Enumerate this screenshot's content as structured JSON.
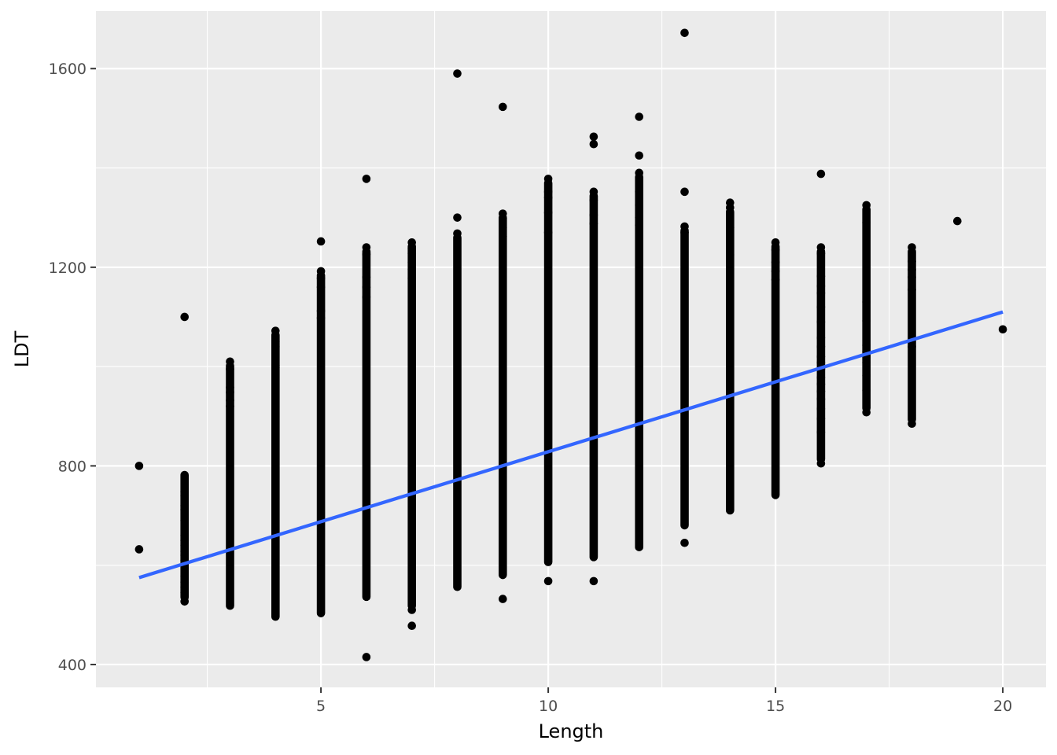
{
  "chart_data": {
    "type": "scatter",
    "title": "",
    "xlabel": "Length",
    "ylabel": "LDT",
    "xlim": [
      0.05,
      20.95
    ],
    "ylim": [
      354,
      1716
    ],
    "x_ticks": [
      5,
      10,
      15,
      20
    ],
    "x_tick_labels": [
      "5",
      "10",
      "15",
      "20"
    ],
    "y_ticks": [
      400,
      800,
      1200,
      1600
    ],
    "y_tick_labels": [
      "400",
      "800",
      "1200",
      "1600"
    ],
    "grid": true,
    "legend": "none",
    "colors": {
      "panel": "#ebebeb",
      "grid": "#ffffff",
      "points": "#000000",
      "trend": "#3366ff"
    },
    "strips": [
      {
        "x": 2,
        "min": 527,
        "max": 790
      },
      {
        "x": 3,
        "min": 510,
        "max": 1010
      },
      {
        "x": 4,
        "min": 488,
        "max": 1072
      },
      {
        "x": 5,
        "min": 495,
        "max": 1192
      },
      {
        "x": 6,
        "min": 528,
        "max": 1240
      },
      {
        "x": 7,
        "min": 510,
        "max": 1250
      },
      {
        "x": 8,
        "min": 548,
        "max": 1268
      },
      {
        "x": 9,
        "min": 572,
        "max": 1308
      },
      {
        "x": 10,
        "min": 598,
        "max": 1378
      },
      {
        "x": 11,
        "min": 608,
        "max": 1352
      },
      {
        "x": 12,
        "min": 628,
        "max": 1390
      },
      {
        "x": 13,
        "min": 672,
        "max": 1282
      },
      {
        "x": 14,
        "min": 702,
        "max": 1320
      },
      {
        "x": 15,
        "min": 733,
        "max": 1250
      },
      {
        "x": 16,
        "min": 805,
        "max": 1240
      },
      {
        "x": 17,
        "min": 908,
        "max": 1325
      },
      {
        "x": 18,
        "min": 885,
        "max": 1240
      }
    ],
    "points": [
      [
        1,
        800
      ],
      [
        1,
        632
      ],
      [
        2,
        1100
      ],
      [
        2,
        748
      ],
      [
        2,
        740
      ],
      [
        2,
        720
      ],
      [
        2,
        712
      ],
      [
        2,
        690
      ],
      [
        2,
        660
      ],
      [
        2,
        650
      ],
      [
        2,
        640
      ],
      [
        2,
        628
      ],
      [
        2,
        620
      ],
      [
        2,
        610
      ],
      [
        2,
        600
      ],
      [
        2,
        578
      ],
      [
        2,
        566
      ],
      [
        2,
        556
      ],
      [
        2,
        545
      ],
      [
        2,
        527
      ],
      [
        3,
        1010
      ],
      [
        3,
        995
      ],
      [
        3,
        958
      ],
      [
        3,
        948
      ],
      [
        3,
        932
      ],
      [
        3,
        920
      ],
      [
        4,
        1072
      ],
      [
        4,
        1050
      ],
      [
        4,
        1040
      ],
      [
        4,
        1003
      ],
      [
        4,
        998
      ],
      [
        5,
        1252
      ],
      [
        5,
        1192
      ],
      [
        5,
        1178
      ],
      [
        5,
        1160
      ],
      [
        5,
        1112
      ],
      [
        5,
        1098
      ],
      [
        6,
        1378
      ],
      [
        6,
        1240
      ],
      [
        6,
        1226
      ],
      [
        6,
        1180
      ],
      [
        6,
        1160
      ],
      [
        6,
        1140
      ],
      [
        6,
        415
      ],
      [
        7,
        1250
      ],
      [
        7,
        1238
      ],
      [
        7,
        1228
      ],
      [
        7,
        1210
      ],
      [
        7,
        1196
      ],
      [
        7,
        1178
      ],
      [
        7,
        510
      ],
      [
        7,
        478
      ],
      [
        8,
        1590
      ],
      [
        8,
        1300
      ],
      [
        8,
        1268
      ],
      [
        9,
        1523
      ],
      [
        9,
        1308
      ],
      [
        9,
        1298
      ],
      [
        9,
        1280
      ],
      [
        9,
        1262
      ],
      [
        9,
        532
      ],
      [
        10,
        1378
      ],
      [
        10,
        1352
      ],
      [
        10,
        1340
      ],
      [
        10,
        1310
      ],
      [
        10,
        1270
      ],
      [
        10,
        568
      ],
      [
        11,
        1463
      ],
      [
        11,
        1448
      ],
      [
        11,
        1352
      ],
      [
        11,
        1335
      ],
      [
        11,
        1305
      ],
      [
        11,
        1288
      ],
      [
        11,
        568
      ],
      [
        12,
        1503
      ],
      [
        12,
        1425
      ],
      [
        12,
        1390
      ],
      [
        12,
        1352
      ],
      [
        12,
        1325
      ],
      [
        12,
        1300
      ],
      [
        12,
        1285
      ],
      [
        13,
        1672
      ],
      [
        13,
        1352
      ],
      [
        13,
        1282
      ],
      [
        13,
        1270
      ],
      [
        13,
        645
      ],
      [
        14,
        1330
      ],
      [
        14,
        1320
      ],
      [
        14,
        1280
      ],
      [
        14,
        1225
      ],
      [
        15,
        1250
      ],
      [
        15,
        1235
      ],
      [
        15,
        1210
      ],
      [
        15,
        1192
      ],
      [
        15,
        1175
      ],
      [
        16,
        1388
      ],
      [
        16,
        1240
      ],
      [
        16,
        1228
      ],
      [
        16,
        1182
      ],
      [
        16,
        1162
      ],
      [
        16,
        1148
      ],
      [
        16,
        1120
      ],
      [
        16,
        1090
      ],
      [
        16,
        1058
      ],
      [
        16,
        1040
      ],
      [
        16,
        1020
      ],
      [
        16,
        1008
      ],
      [
        16,
        995
      ],
      [
        16,
        978
      ],
      [
        16,
        965
      ],
      [
        16,
        950
      ],
      [
        16,
        935
      ],
      [
        16,
        915
      ],
      [
        16,
        895
      ],
      [
        16,
        868
      ],
      [
        16,
        805
      ],
      [
        17,
        1325
      ],
      [
        17,
        1290
      ],
      [
        17,
        1130
      ],
      [
        17,
        1092
      ],
      [
        17,
        1043
      ],
      [
        17,
        1030
      ],
      [
        17,
        1020
      ],
      [
        17,
        1008
      ],
      [
        17,
        982
      ],
      [
        17,
        952
      ],
      [
        17,
        908
      ],
      [
        18,
        1240
      ],
      [
        18,
        1212
      ],
      [
        18,
        1195
      ],
      [
        18,
        1180
      ],
      [
        18,
        1155
      ],
      [
        18,
        1040
      ],
      [
        18,
        885
      ],
      [
        19,
        1293
      ],
      [
        20,
        1075
      ]
    ],
    "trend_line": {
      "x": [
        1,
        20
      ],
      "y": [
        575,
        1110
      ]
    }
  }
}
